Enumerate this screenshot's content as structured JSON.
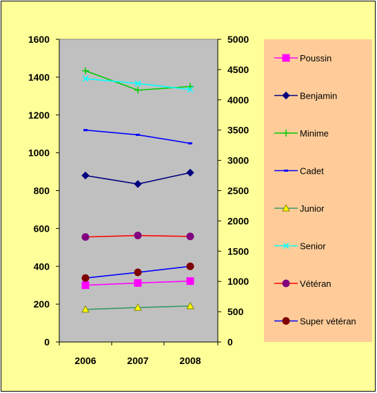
{
  "chart_data": {
    "type": "line",
    "categories": [
      "2006",
      "2007",
      "2008"
    ],
    "y_left": {
      "min": 0,
      "max": 1600,
      "ticks": [
        "0",
        "200",
        "400",
        "600",
        "800",
        "1000",
        "1200",
        "1400",
        "1600"
      ]
    },
    "y_right": {
      "min": 0,
      "max": 5000,
      "ticks": [
        "0",
        "500",
        "1000",
        "1500",
        "2000",
        "2500",
        "3000",
        "3500",
        "4000",
        "4500",
        "5000"
      ]
    },
    "grid": false,
    "legend_position": "right",
    "plot_background": "#c0c0c0",
    "chart_background": "#ffff99",
    "legend_background": "#ffcc99",
    "series": [
      {
        "name": "Poussin",
        "axis": "left",
        "color": "#ff00ff",
        "marker": "square",
        "values": [
          300,
          312,
          322
        ]
      },
      {
        "name": "Benjamin",
        "axis": "left",
        "color": "#000080",
        "marker": "diamond",
        "values": [
          880,
          835,
          895
        ]
      },
      {
        "name": "Minime",
        "axis": "right",
        "color": "#00cc00",
        "marker": "plus",
        "values": [
          4480,
          4160,
          4220
        ]
      },
      {
        "name": "Cadet",
        "axis": "left",
        "color": "#0000ff",
        "marker": "dash",
        "values": [
          1120,
          1095,
          1050
        ]
      },
      {
        "name": "Junior",
        "axis": "left",
        "color": "#339966",
        "marker": "triangle",
        "values": [
          172,
          182,
          190
        ]
      },
      {
        "name": "Senior",
        "axis": "right",
        "color": "#00ffff",
        "marker": "x",
        "values": [
          4350,
          4270,
          4170
        ]
      },
      {
        "name": "Vétéran",
        "axis": "left",
        "color": "#ff0000",
        "marker": "circle",
        "values": [
          555,
          563,
          558
        ]
      },
      {
        "name": "Super vétéran",
        "axis": "left",
        "color": "#0000ff",
        "marker": "circle",
        "values": [
          338,
          368,
          400
        ]
      }
    ]
  }
}
